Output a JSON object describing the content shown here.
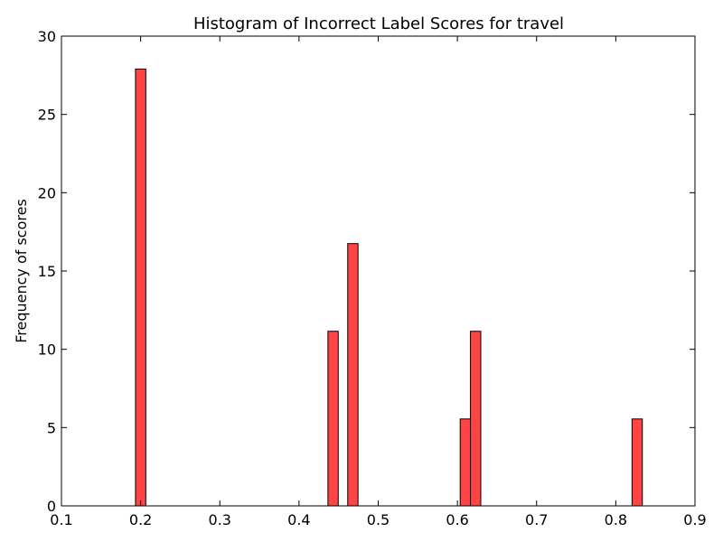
{
  "chart_data": {
    "type": "bar",
    "title": "Histogram of Incorrect Label Scores for travel",
    "xlabel": "",
    "ylabel": "Frequency of scores",
    "xlim": [
      0.1,
      0.9
    ],
    "ylim": [
      0,
      30
    ],
    "xticks": [
      "0.1",
      "0.2",
      "0.3",
      "0.4",
      "0.5",
      "0.6",
      "0.7",
      "0.8",
      "0.9"
    ],
    "yticks": [
      "0",
      "5",
      "10",
      "15",
      "20",
      "25",
      "30"
    ],
    "grid": false,
    "bar_color": "#ff4444",
    "bar_edge_color": "#000000",
    "bin_width": 0.013,
    "bars": [
      {
        "x": 0.2,
        "value": 27.9
      },
      {
        "x": 0.443,
        "value": 11.15
      },
      {
        "x": 0.468,
        "value": 16.75
      },
      {
        "x": 0.61,
        "value": 5.55
      },
      {
        "x": 0.623,
        "value": 11.15
      },
      {
        "x": 0.827,
        "value": 5.55
      }
    ]
  }
}
